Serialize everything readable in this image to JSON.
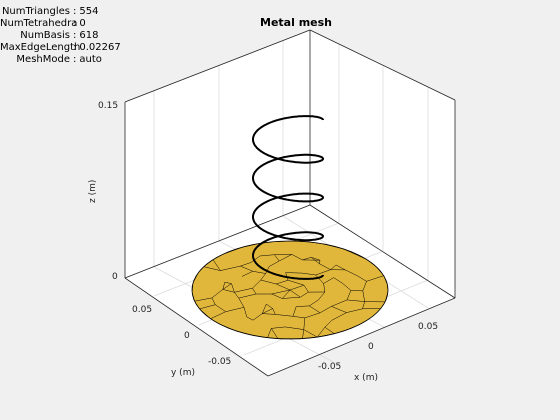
{
  "info": [
    {
      "key": "NumTriangles",
      "value": "554"
    },
    {
      "key": "NumTetrahedra",
      "value": "0"
    },
    {
      "key": "NumBasis",
      "value": "618"
    },
    {
      "key": "MaxEdgeLength",
      "value": "0.02267"
    },
    {
      "key": "MeshMode",
      "value": "auto"
    }
  ],
  "title": "Metal mesh",
  "axes": {
    "xlabel": "x (m)",
    "ylabel": "y (m)",
    "zlabel": "z (m)",
    "xticks": [
      "-0.05",
      "0",
      "0.05"
    ],
    "yticks": [
      "0.05",
      "0",
      "-0.05"
    ],
    "zticks": [
      "0.15",
      "0"
    ]
  },
  "colors": {
    "background": "#f0f0f0",
    "ground_fill": "#e1b73b",
    "mesh_edges": "#000000",
    "helix": "#000000",
    "box": "#262626",
    "grid": "#dcdcdc"
  }
}
